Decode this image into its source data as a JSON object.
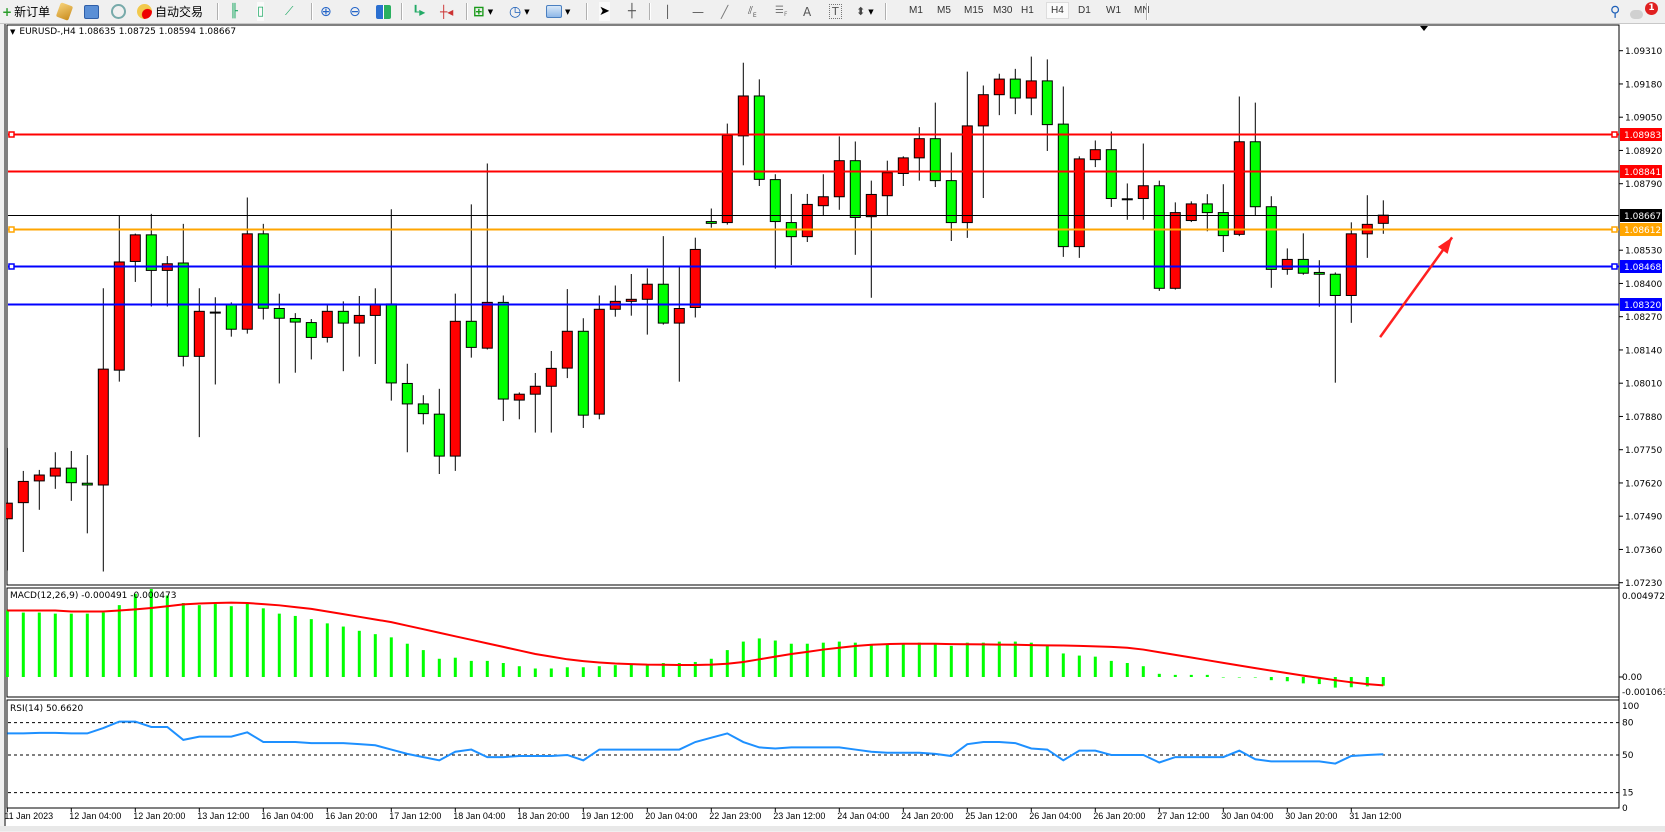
{
  "toolbar": {
    "new_order_label": "新订单",
    "auto_trading_label": "自动交易",
    "timeframes": [
      "M1",
      "M5",
      "M15",
      "M30",
      "H1",
      "H4",
      "D1",
      "W1",
      "MN"
    ],
    "active_timeframe": "H4",
    "notification_count": "1"
  },
  "chart": {
    "header": "EURUSD-,H4  1.08635 1.08725 1.08594 1.08667",
    "symbol": "EURUSD-",
    "timeframe": "H4",
    "ohlc_current": {
      "open": 1.08635,
      "high": 1.08725,
      "low": 1.08594,
      "close": 1.08667
    },
    "colors": {
      "bull": "#ff0000",
      "bear": "#00ff00",
      "macd_hist": "#00ff00",
      "macd_signal": "#ff0000",
      "rsi": "#1e90ff"
    },
    "price_ticks": [
      "1.09310",
      "1.09180",
      "1.09050",
      "1.08920",
      "1.08790",
      "1.08530",
      "1.08400",
      "1.08270",
      "1.08140",
      "1.08010",
      "1.07880",
      "1.07750",
      "1.07620",
      "1.07490",
      "1.07360",
      "1.07230"
    ],
    "price_range": [
      1.0723,
      1.0931
    ],
    "hlines": [
      {
        "price": "1.08983",
        "color": "#ff0000",
        "handles": true
      },
      {
        "price": "1.08841",
        "color": "#ff0000",
        "handles": false
      },
      {
        "price": "1.08667",
        "color": "#000000",
        "handles": false
      },
      {
        "price": "1.08612",
        "color": "#ffa500",
        "handles": true
      },
      {
        "price": "1.08468",
        "color": "#0000ff",
        "handles": true
      },
      {
        "price": "1.08320",
        "color": "#0000ff",
        "handles": false
      }
    ],
    "arrow": {
      "color": "#ff2020",
      "from_price": 1.0819,
      "from_bar": 85.8,
      "to_price": 1.0858,
      "to_bar": 90.3
    },
    "date_labels": [
      "11 Jan 2023",
      "12 Jan 04:00",
      "12 Jan 20:00",
      "13 Jan 12:00",
      "16 Jan 04:00",
      "16 Jan 20:00",
      "17 Jan 12:00",
      "18 Jan 04:00",
      "18 Jan 20:00",
      "19 Jan 12:00",
      "20 Jan 04:00",
      "22 Jan 23:00",
      "23 Jan 12:00",
      "24 Jan 04:00",
      "24 Jan 20:00",
      "25 Jan 12:00",
      "26 Jan 04:00",
      "26 Jan 20:00",
      "27 Jan 12:00",
      "30 Jan 04:00",
      "30 Jan 20:00",
      "31 Jan 12:00"
    ],
    "date_label_every_bars": 4,
    "candles_ohlc": [
      [
        1.0748,
        1.07757,
        1.07278,
        1.07541
      ],
      [
        1.07543,
        1.07667,
        1.0735,
        1.07626
      ],
      [
        1.07628,
        1.07671,
        1.07515,
        1.07651
      ],
      [
        1.07647,
        1.0774,
        1.07597,
        1.07678
      ],
      [
        1.07678,
        1.07745,
        1.0755,
        1.07621
      ],
      [
        1.07619,
        1.07729,
        1.07423,
        1.07612
      ],
      [
        1.07612,
        1.08381,
        1.07274,
        1.08065
      ],
      [
        1.08061,
        1.08664,
        1.08016,
        1.08484
      ],
      [
        1.08486,
        1.08595,
        1.08406,
        1.0859
      ],
      [
        1.0859,
        1.08672,
        1.0831,
        1.08451
      ],
      [
        1.08451,
        1.08507,
        1.0831,
        1.08477
      ],
      [
        1.0848,
        1.08633,
        1.08076,
        1.08115
      ],
      [
        1.08115,
        1.08381,
        1.07799,
        1.08291
      ],
      [
        1.08288,
        1.08346,
        1.08005,
        1.08288
      ],
      [
        1.08319,
        1.08326,
        1.08192,
        1.08221
      ],
      [
        1.08221,
        1.08736,
        1.08204,
        1.08594
      ],
      [
        1.08594,
        1.08633,
        1.08259,
        1.08303
      ],
      [
        1.08302,
        1.0836,
        1.08009,
        1.08264
      ],
      [
        1.08263,
        1.08284,
        1.08051,
        1.08249
      ],
      [
        1.08247,
        1.08261,
        1.08103,
        1.08189
      ],
      [
        1.08189,
        1.08319,
        1.08169,
        1.08291
      ],
      [
        1.08291,
        1.0833,
        1.08057,
        1.08245
      ],
      [
        1.08245,
        1.08351,
        1.08114,
        1.08275
      ],
      [
        1.08275,
        1.08381,
        1.08085,
        1.08317
      ],
      [
        1.0832,
        1.0869,
        1.07942,
        1.08011
      ],
      [
        1.08009,
        1.08086,
        1.0774,
        1.07929
      ],
      [
        1.07929,
        1.07963,
        1.07849,
        1.07891
      ],
      [
        1.07889,
        1.07988,
        1.07655,
        1.07725
      ],
      [
        1.07725,
        1.0836,
        1.07667,
        1.08252
      ],
      [
        1.08252,
        1.08709,
        1.0811,
        1.0815
      ],
      [
        1.08147,
        1.08869,
        1.08142,
        1.08326
      ],
      [
        1.08326,
        1.08353,
        1.07862,
        1.07948
      ],
      [
        1.07944,
        1.07974,
        1.07869,
        1.07967
      ],
      [
        1.07967,
        1.0805,
        1.07817,
        1.07998
      ],
      [
        1.07998,
        1.08136,
        1.07817,
        1.08068
      ],
      [
        1.08069,
        1.08378,
        1.0803,
        1.08213
      ],
      [
        1.08213,
        1.08264,
        1.07835,
        1.07885
      ],
      [
        1.07889,
        1.08353,
        1.07869,
        1.08299
      ],
      [
        1.08299,
        1.08392,
        1.0827,
        1.0833
      ],
      [
        1.0833,
        1.08437,
        1.08274,
        1.08338
      ],
      [
        1.08338,
        1.08459,
        1.082,
        1.08397
      ],
      [
        1.08397,
        1.08585,
        1.08239,
        1.08245
      ],
      [
        1.08245,
        1.08463,
        1.08016,
        1.08302
      ],
      [
        1.08306,
        1.08579,
        1.08267,
        1.08533
      ],
      [
        1.08642,
        1.08693,
        1.08618,
        1.08635
      ],
      [
        1.08638,
        1.09025,
        1.0863,
        1.08979
      ],
      [
        1.08977,
        1.09263,
        1.08862,
        1.09133
      ],
      [
        1.09133,
        1.09198,
        1.08781,
        1.08807
      ],
      [
        1.08806,
        1.08827,
        1.08458,
        1.08642
      ],
      [
        1.08638,
        1.0875,
        1.08472,
        1.08583
      ],
      [
        1.08583,
        1.0875,
        1.08562,
        1.08709
      ],
      [
        1.08704,
        1.08827,
        1.08665,
        1.08739
      ],
      [
        1.08739,
        1.08975,
        1.08688,
        1.0888
      ],
      [
        1.0888,
        1.08955,
        1.08512,
        1.08658
      ],
      [
        1.08661,
        1.08802,
        1.08344,
        1.08748
      ],
      [
        1.08743,
        1.0888,
        1.08665,
        1.08833
      ],
      [
        1.0883,
        1.08897,
        1.08781,
        1.08891
      ],
      [
        1.08891,
        1.09011,
        1.08802,
        1.08966
      ],
      [
        1.08966,
        1.09107,
        1.08777,
        1.08802
      ],
      [
        1.08802,
        1.08912,
        1.08566,
        1.08638
      ],
      [
        1.08638,
        1.09228,
        1.08578,
        1.09016
      ],
      [
        1.09016,
        1.09174,
        1.08734,
        1.09138
      ],
      [
        1.09138,
        1.0922,
        1.09058,
        1.09199
      ],
      [
        1.09199,
        1.09239,
        1.09062,
        1.09125
      ],
      [
        1.09125,
        1.09287,
        1.09058,
        1.09192
      ],
      [
        1.09192,
        1.09276,
        1.08918,
        1.09021
      ],
      [
        1.09023,
        1.0917,
        1.08504,
        1.08544
      ],
      [
        1.08544,
        1.08897,
        1.085,
        1.08887
      ],
      [
        1.08884,
        1.08959,
        1.08855,
        1.08923
      ],
      [
        1.08923,
        1.08994,
        1.08699,
        1.08732
      ],
      [
        1.08731,
        1.08791,
        1.08649,
        1.08731
      ],
      [
        1.08732,
        1.08947,
        1.08649,
        1.08782
      ],
      [
        1.08782,
        1.08802,
        1.08371,
        1.08381
      ],
      [
        1.08381,
        1.08717,
        1.08376,
        1.08677
      ],
      [
        1.08646,
        1.08721,
        1.0864,
        1.08711
      ],
      [
        1.08711,
        1.08749,
        1.08604,
        1.08677
      ],
      [
        1.08677,
        1.08788,
        1.08523,
        1.08587
      ],
      [
        1.08592,
        1.09131,
        1.08585,
        1.08954
      ],
      [
        1.08954,
        1.09107,
        1.08665,
        1.087
      ],
      [
        1.087,
        1.08741,
        1.08383,
        1.08455
      ],
      [
        1.08455,
        1.08537,
        1.08434,
        1.08494
      ],
      [
        1.08494,
        1.08596,
        1.08434,
        1.0844
      ],
      [
        1.08443,
        1.08491,
        1.08309,
        1.08436
      ],
      [
        1.08436,
        1.08443,
        1.08012,
        1.08353
      ],
      [
        1.08353,
        1.08639,
        1.08246,
        1.08594
      ],
      [
        1.08594,
        1.08745,
        1.085,
        1.08631
      ],
      [
        1.08635,
        1.08725,
        1.08594,
        1.08667
      ]
    ]
  },
  "macd": {
    "header": "MACD(12,26,9) -0.000491 -0.000473",
    "axis_labels": [
      "0.004972",
      "0.00",
      "-0.001063"
    ],
    "range": [
      -0.001063,
      0.004972
    ],
    "main": [
      0.00376,
      0.00364,
      0.00364,
      0.00358,
      0.00358,
      0.00358,
      0.00364,
      0.00406,
      0.0047,
      0.00497,
      0.0046,
      0.00418,
      0.00406,
      0.00412,
      0.004,
      0.00418,
      0.00388,
      0.00358,
      0.00345,
      0.00327,
      0.00303,
      0.00285,
      0.00261,
      0.00242,
      0.00224,
      0.00188,
      0.00152,
      0.00103,
      0.00109,
      0.00091,
      0.00091,
      0.00079,
      0.00061,
      0.00048,
      0.00048,
      0.00055,
      0.00055,
      0.00061,
      0.00067,
      0.00073,
      0.00073,
      0.00079,
      0.00079,
      0.00085,
      0.00103,
      0.00152,
      0.002,
      0.00218,
      0.00206,
      0.00188,
      0.00188,
      0.00194,
      0.002,
      0.00194,
      0.00182,
      0.00188,
      0.00188,
      0.00194,
      0.00188,
      0.00176,
      0.00194,
      0.00194,
      0.002,
      0.002,
      0.00194,
      0.00182,
      0.00133,
      0.00121,
      0.00115,
      0.00091,
      0.00079,
      0.00061,
      0.00018,
      0.00012,
      0.00012,
      0.00012,
      0.0,
      0.0,
      0.0,
      -0.00018,
      -0.00024,
      -0.00036,
      -0.0004,
      -0.0006,
      -0.00058,
      -0.00053,
      -0.000491
    ],
    "signal": [
      0.00376,
      0.00376,
      0.00376,
      0.00376,
      0.0037,
      0.0037,
      0.0037,
      0.00376,
      0.00382,
      0.0039,
      0.004,
      0.0041,
      0.00415,
      0.00418,
      0.0042,
      0.00418,
      0.00412,
      0.00405,
      0.00395,
      0.00385,
      0.0037,
      0.00355,
      0.0034,
      0.00325,
      0.0031,
      0.0029,
      0.0027,
      0.0025,
      0.0023,
      0.0021,
      0.0019,
      0.0017,
      0.0015,
      0.0013,
      0.00115,
      0.001,
      0.0009,
      0.00082,
      0.00076,
      0.00073,
      0.0007,
      0.00069,
      0.00068,
      0.00068,
      0.0007,
      0.00075,
      0.00085,
      0.001,
      0.00115,
      0.0013,
      0.00142,
      0.00155,
      0.00165,
      0.00175,
      0.00182,
      0.00186,
      0.00188,
      0.00188,
      0.00188,
      0.00186,
      0.00185,
      0.00184,
      0.00183,
      0.00182,
      0.0018,
      0.00179,
      0.00178,
      0.00176,
      0.00173,
      0.0017,
      0.00165,
      0.00155,
      0.0014,
      0.00125,
      0.0011,
      0.00095,
      0.0008,
      0.00065,
      0.0005,
      0.00036,
      0.00022,
      8e-05,
      -5e-05,
      -0.00018,
      -0.0003,
      -0.0004,
      -0.000473
    ]
  },
  "rsi": {
    "header": "RSI(14) 50.6620",
    "axis_labels": [
      "100",
      "80",
      "50",
      "15",
      "0"
    ],
    "levels": [
      80,
      50,
      15
    ],
    "values": [
      70,
      70,
      70.5,
      70.5,
      70,
      70,
      75,
      81,
      81,
      76,
      76,
      64,
      67,
      67,
      67,
      71,
      62,
      62,
      62,
      61,
      61,
      61,
      60,
      59,
      55,
      51,
      48,
      45,
      53,
      55,
      48,
      48,
      49,
      49,
      49,
      50,
      45,
      55,
      55,
      55,
      55,
      55,
      55,
      62,
      66,
      70,
      62,
      57,
      56,
      57,
      57,
      57,
      57,
      55,
      53,
      52,
      52,
      52,
      51,
      49,
      60,
      62,
      62,
      61,
      56,
      55,
      45,
      54,
      54,
      50,
      50,
      50,
      43,
      48,
      48,
      48,
      48,
      54,
      46,
      44,
      44,
      44,
      44,
      42,
      49,
      50,
      50.662
    ]
  }
}
